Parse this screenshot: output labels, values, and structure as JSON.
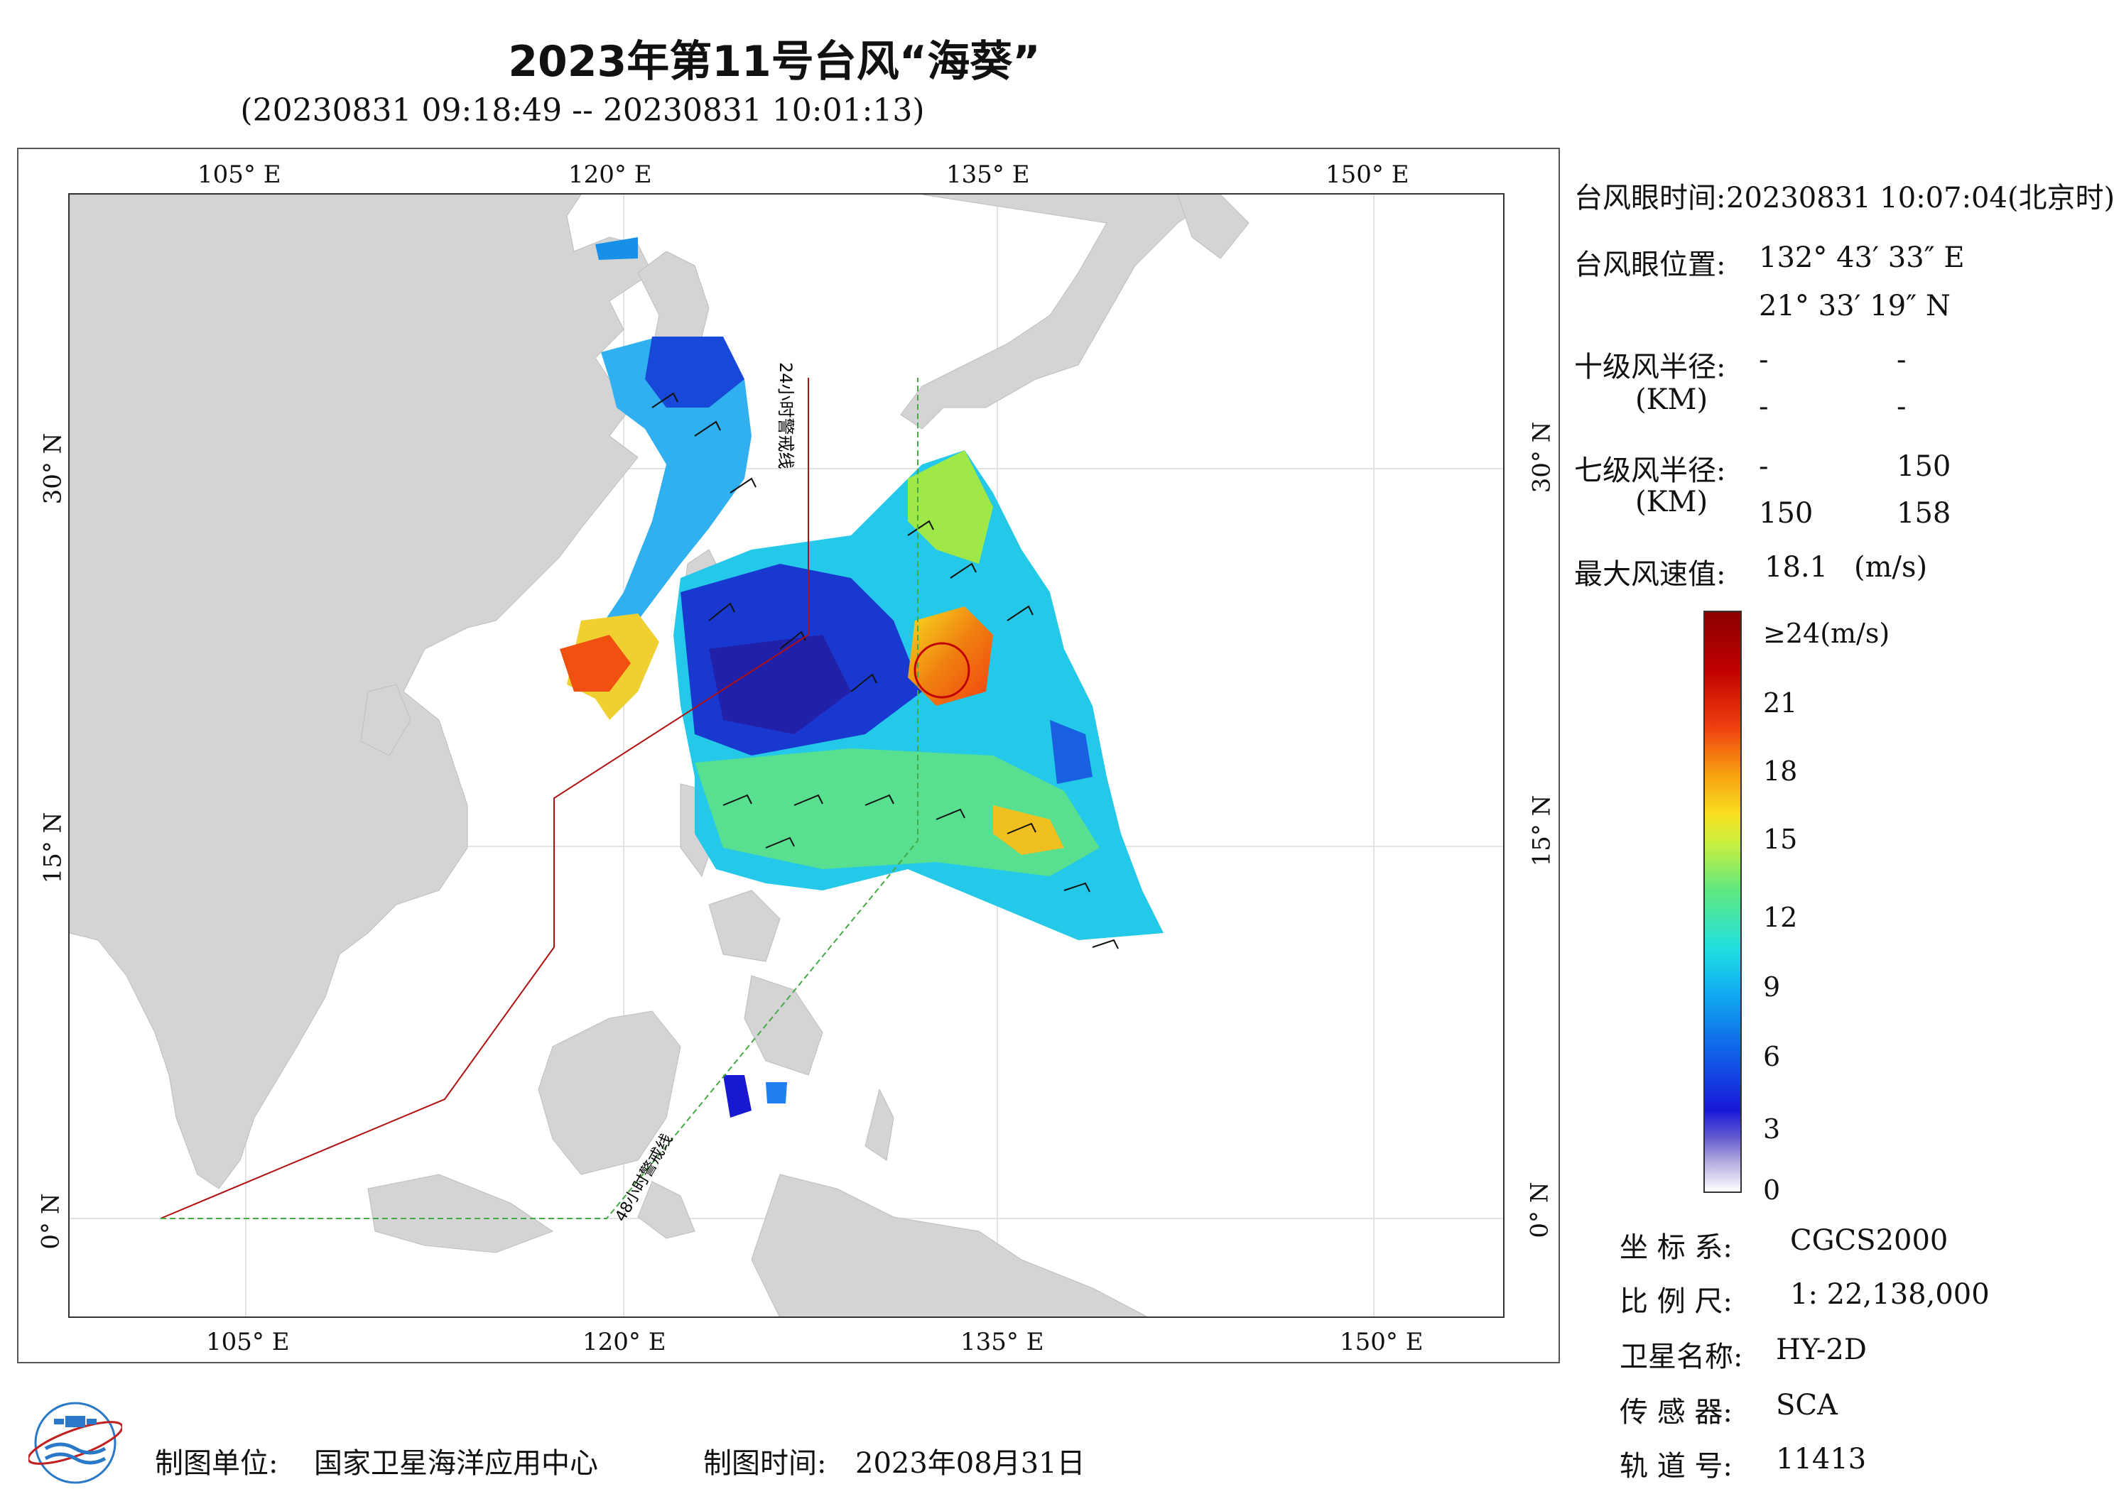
{
  "header": {
    "title": "2023年第11号台风“海葵”",
    "subtitle": "(20230831 09:18:49 -- 20230831 10:01:13)"
  },
  "map": {
    "lon_ticks_top": [
      "105° E",
      "120° E",
      "135° E",
      "150° E"
    ],
    "lon_ticks_bottom": [
      "105° E",
      "120° E",
      "135° E",
      "150° E"
    ],
    "lat_ticks_left": [
      "30° N",
      "15° N",
      "0° N"
    ],
    "lat_ticks_right": [
      "30° N",
      "15° N",
      "0° N"
    ],
    "warning_line_24h": "24小时警戒线",
    "warning_line_48h": "48小时警戒线",
    "colors": {
      "land": "#d4d4d4",
      "sea": "#ffffff",
      "line_24h": "#b01010",
      "line_48h": "#44aa44",
      "typhoon_marker": "#c00000"
    }
  },
  "info": {
    "eye_time_label": "台风眼时间:",
    "eye_time_value": "20230831 10:07:04(北京时)",
    "eye_pos_label": "台风眼位置:",
    "eye_lon": "132° 43′ 33″ E",
    "eye_lat": "21° 33′ 19″ N",
    "r10_label": "十级风半径:",
    "r10_unit": "(KM)",
    "r10_values": [
      "-",
      "-",
      "-",
      "-"
    ],
    "r7_label": "七级风半径:",
    "r7_unit": "(KM)",
    "r7_values": [
      "-",
      "150",
      "150",
      "158"
    ],
    "max_wind_label": "最大风速值:",
    "max_wind_value": "18.1",
    "max_wind_unit": "(m/s)"
  },
  "colorbar": {
    "labels": [
      "≥24(m/s)",
      "21",
      "18",
      "15",
      "12",
      "9",
      "6",
      "3",
      "0"
    ]
  },
  "meta": {
    "crs_label": "坐 标 系:",
    "crs_value": "CGCS2000",
    "scale_label": "比 例 尺:",
    "scale_value": "1: 22,138,000",
    "satellite_label": "卫星名称:",
    "satellite_value": "HY-2D",
    "sensor_label": "传 感 器:",
    "sensor_value": "SCA",
    "orbit_label": "轨 道 号:",
    "orbit_value": "11413"
  },
  "footer": {
    "producer_label": "制图单位:",
    "producer_value": "国家卫星海洋应用中心",
    "date_label": "制图时间:",
    "date_value": "2023年08月31日"
  }
}
